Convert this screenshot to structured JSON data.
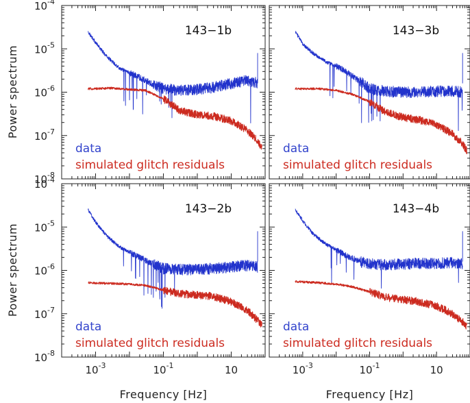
{
  "chart_data": {
    "type": "line",
    "x_scale": "log",
    "y_scale": "log",
    "xlim": [
      0.0001,
      100
    ],
    "ylim": [
      1e-08,
      0.0001
    ],
    "xlabel": "Frequency [Hz]",
    "ylabel": "Power spectrum",
    "x_ticks": [
      {
        "value": 0.001,
        "base": "10",
        "exp": "-3"
      },
      {
        "value": 0.1,
        "base": "10",
        "exp": "-1"
      },
      {
        "value": 10,
        "label": "10"
      }
    ],
    "y_ticks": [
      {
        "value": 1e-08,
        "base": "10",
        "exp": "-8"
      },
      {
        "value": 1e-07,
        "base": "10",
        "exp": "-7"
      },
      {
        "value": 1e-06,
        "base": "10",
        "exp": "-6"
      },
      {
        "value": 1e-05,
        "base": "10",
        "exp": "-5"
      },
      {
        "value": 0.0001,
        "base": "10",
        "exp": "-4"
      }
    ],
    "legend": {
      "data": "data",
      "sim": "simulated glitch residuals"
    },
    "colors": {
      "data": "#2233cc",
      "sim": "#cc2b20"
    },
    "panels": [
      {
        "title": "143−1b",
        "series": [
          {
            "name": "data",
            "x": [
              0.0006,
              0.001,
              0.002,
              0.005,
              0.01,
              0.02,
              0.05,
              0.1,
              0.3,
              1,
              3,
              10,
              30,
              60
            ],
            "y": [
              2.5e-05,
              1.4e-05,
              7e-06,
              3.6e-06,
              2.8e-06,
              2.2e-06,
              1.5e-06,
              1.2e-06,
              1.1e-06,
              1.15e-06,
              1.3e-06,
              1.6e-06,
              1.9e-06,
              1.6e-06
            ]
          },
          {
            "name": "simulated glitch residuals",
            "x": [
              0.0006,
              0.001,
              0.003,
              0.01,
              0.03,
              0.1,
              0.3,
              1,
              3,
              10,
              30,
              60,
              80
            ],
            "y": [
              1.2e-06,
              1.2e-06,
              1.25e-06,
              1.15e-06,
              1.1e-06,
              7e-07,
              3.8e-07,
              3e-07,
              2.8e-07,
              2.2e-07,
              1.3e-07,
              7.5e-08,
              5e-08
            ]
          }
        ]
      },
      {
        "title": "143−3b",
        "series": [
          {
            "name": "data",
            "x": [
              0.0006,
              0.001,
              0.002,
              0.005,
              0.01,
              0.02,
              0.05,
              0.1,
              0.3,
              1,
              3,
              10,
              30,
              60
            ],
            "y": [
              2.5e-05,
              1.3e-05,
              8e-06,
              5e-06,
              4e-06,
              3e-06,
              1.8e-06,
              1.2e-06,
              1.05e-06,
              1e-06,
              1e-06,
              1.05e-06,
              1.05e-06,
              1e-06
            ]
          },
          {
            "name": "simulated glitch residuals",
            "x": [
              0.0006,
              0.001,
              0.003,
              0.01,
              0.03,
              0.1,
              0.3,
              1,
              3,
              10,
              30,
              60,
              80
            ],
            "y": [
              1.2e-06,
              1.2e-06,
              1.2e-06,
              1.1e-06,
              9e-07,
              6e-07,
              3.5e-07,
              2.6e-07,
              2.3e-07,
              1.8e-07,
              1.1e-07,
              6.5e-08,
              4.5e-08
            ]
          }
        ]
      },
      {
        "title": "143−2b",
        "series": [
          {
            "name": "data",
            "x": [
              0.0006,
              0.001,
              0.002,
              0.005,
              0.01,
              0.02,
              0.05,
              0.1,
              0.3,
              1,
              3,
              10,
              30,
              60
            ],
            "y": [
              2.5e-05,
              1.3e-05,
              6.5e-06,
              3.5e-06,
              2.6e-06,
              2e-06,
              1.4e-06,
              1.1e-06,
              1.05e-06,
              1.05e-06,
              1.1e-06,
              1.2e-06,
              1.3e-06,
              1.2e-06
            ]
          },
          {
            "name": "simulated glitch residuals",
            "x": [
              0.0006,
              0.001,
              0.003,
              0.01,
              0.03,
              0.1,
              0.3,
              1,
              3,
              10,
              30,
              60,
              80
            ],
            "y": [
              5.2e-07,
              5.1e-07,
              5e-07,
              4.8e-07,
              4.5e-07,
              3.5e-07,
              2.9e-07,
              2.7e-07,
              2.5e-07,
              1.9e-07,
              1.2e-07,
              7e-08,
              5.5e-08
            ]
          }
        ]
      },
      {
        "title": "143−4b",
        "series": [
          {
            "name": "data",
            "x": [
              0.0006,
              0.001,
              0.002,
              0.005,
              0.01,
              0.02,
              0.05,
              0.1,
              0.3,
              1,
              3,
              10,
              30,
              60
            ],
            "y": [
              2.5e-05,
              1.4e-05,
              7e-06,
              4e-06,
              3e-06,
              2.2e-06,
              1.6e-06,
              1.4e-06,
              1.35e-06,
              1.4e-06,
              1.45e-06,
              1.45e-06,
              1.5e-06,
              1.4e-06
            ]
          },
          {
            "name": "simulated glitch residuals",
            "x": [
              0.0006,
              0.001,
              0.003,
              0.01,
              0.03,
              0.1,
              0.3,
              1,
              3,
              10,
              30,
              60,
              80
            ],
            "y": [
              5.5e-07,
              5.4e-07,
              5.2e-07,
              4.8e-07,
              4.2e-07,
              3.2e-07,
              2.4e-07,
              2.1e-07,
              1.9e-07,
              1.5e-07,
              1e-07,
              6.5e-08,
              5e-08
            ]
          }
        ]
      }
    ]
  }
}
